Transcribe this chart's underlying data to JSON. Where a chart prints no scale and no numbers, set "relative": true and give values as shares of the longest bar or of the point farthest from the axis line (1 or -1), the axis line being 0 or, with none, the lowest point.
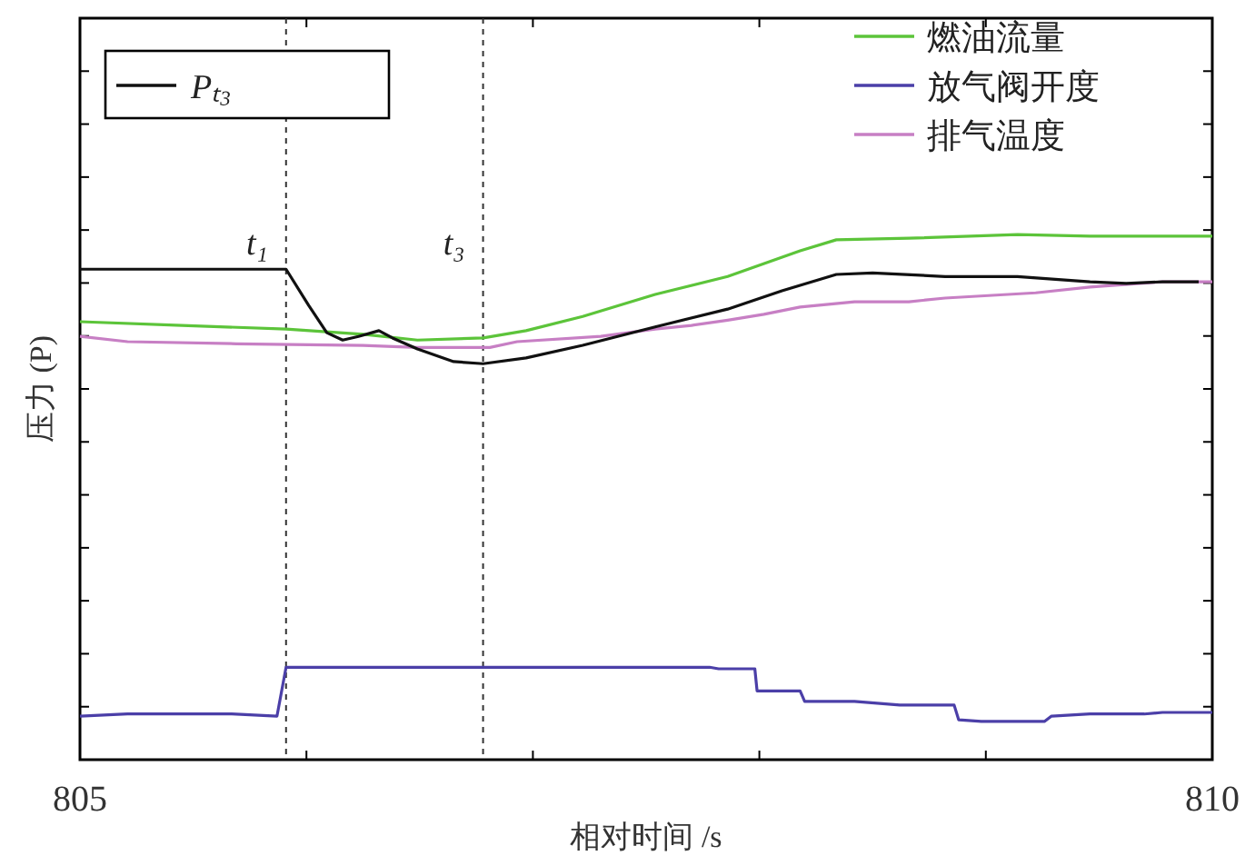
{
  "chart_data": {
    "type": "line",
    "relative": true,
    "xlabel": "相对时间 /s",
    "ylabel": "压力 (P)",
    "xlim": [
      805,
      810
    ],
    "xticks": [
      805,
      {
        "value": 806,
        "label": null
      },
      {
        "value": 807,
        "label": null
      },
      {
        "value": 808,
        "label": null
      },
      {
        "value": 809,
        "label": null
      },
      810
    ],
    "tick_labels": "x",
    "legend": "top right",
    "ref_lines": [
      {
        "axis": "x",
        "value": 805.91,
        "label": "t₁",
        "line_style": "dotted"
      },
      {
        "axis": "x",
        "value": 806.78,
        "label": "t₃",
        "line_style": "dotted"
      }
    ],
    "series": [
      {
        "name": "Pₜ₃",
        "color": "#111111",
        "x": [
          805,
          805.87,
          805.91,
          806.01,
          806.09,
          806.16,
          806.23,
          806.32,
          806.38,
          806.49,
          806.65,
          806.78,
          806.97,
          807.22,
          807.54,
          807.86,
          808.1,
          808.34,
          808.5,
          808.82,
          809.14,
          809.46,
          809.62,
          809.78,
          809.94
        ],
        "values": [
          0.934,
          0.934,
          0.934,
          0.865,
          0.813,
          0.799,
          0.806,
          0.817,
          0.803,
          0.782,
          0.758,
          0.754,
          0.765,
          0.789,
          0.824,
          0.858,
          0.893,
          0.924,
          0.927,
          0.92,
          0.92,
          0.91,
          0.907,
          0.91,
          0.91
        ]
      },
      {
        "name": "燃油流量",
        "color": "#5cc43a",
        "x": [
          805,
          805.45,
          805.91,
          806.25,
          806.49,
          806.78,
          806.97,
          807.22,
          807.54,
          807.86,
          808.18,
          808.34,
          808.66,
          809.14,
          809.46,
          809.78,
          810
        ],
        "values": [
          0.834,
          0.827,
          0.82,
          0.81,
          0.799,
          0.803,
          0.817,
          0.844,
          0.886,
          0.92,
          0.969,
          0.99,
          0.993,
          1,
          0.997,
          0.997,
          0.997
        ]
      },
      {
        "name": "放气阀开度",
        "color": "#4b3fa8",
        "x": [
          805,
          805.21,
          805.67,
          805.87,
          805.91,
          807.78,
          807.82,
          807.98,
          807.99,
          808.18,
          808.2,
          808.42,
          808.62,
          808.86,
          808.88,
          808.98,
          809.26,
          809.29,
          809.46,
          809.7,
          809.78,
          810
        ],
        "values": [
          0.083,
          0.087,
          0.087,
          0.083,
          0.176,
          0.176,
          0.173,
          0.173,
          0.131,
          0.131,
          0.111,
          0.111,
          0.104,
          0.104,
          0.076,
          0.073,
          0.073,
          0.083,
          0.087,
          0.087,
          0.09,
          0.09
        ]
      },
      {
        "name": "排气温度",
        "color": "#c77fc4",
        "x": [
          805,
          805.21,
          805.69,
          806.25,
          806.49,
          806.81,
          806.93,
          807.3,
          807.54,
          807.7,
          807.86,
          808.02,
          808.18,
          808.42,
          808.66,
          808.82,
          809.22,
          809.46,
          809.78,
          810
        ],
        "values": [
          0.806,
          0.796,
          0.792,
          0.789,
          0.785,
          0.785,
          0.796,
          0.806,
          0.82,
          0.827,
          0.837,
          0.848,
          0.862,
          0.872,
          0.872,
          0.879,
          0.889,
          0.9,
          0.91,
          0.91
        ]
      }
    ]
  }
}
